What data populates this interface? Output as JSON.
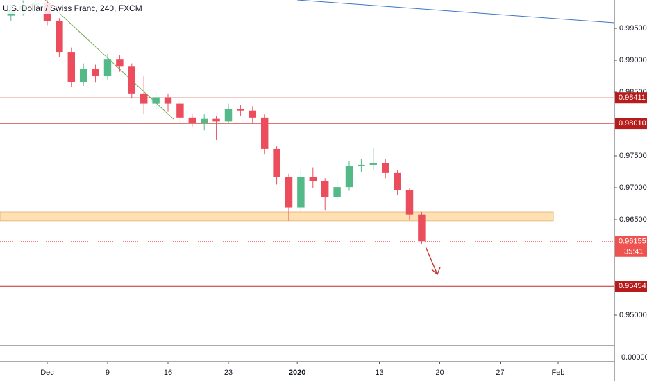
{
  "chart_data": {
    "type": "candlestick",
    "title": "U.S. Dollar / Swiss Franc, 240, FXCM",
    "x": [
      -3,
      -2,
      -1,
      0,
      1,
      2,
      3,
      4,
      5,
      6,
      7,
      8,
      9,
      10,
      11,
      12,
      13,
      14,
      15,
      16,
      17,
      18,
      19,
      20,
      21,
      22,
      23,
      24,
      25,
      26,
      27,
      28,
      29,
      30,
      31
    ],
    "open": [
      0.997,
      0.9978,
      0.9986,
      0.9989,
      0.9962,
      0.9913,
      0.9866,
      0.9886,
      0.9875,
      0.9902,
      0.9891,
      0.9848,
      0.9832,
      0.9842,
      0.9832,
      0.981,
      0.9801,
      0.9808,
      0.9804,
      0.9823,
      0.9821,
      0.981,
      0.9761,
      0.9717,
      0.9669,
      0.9717,
      0.971,
      0.9685,
      0.9701,
      0.9734,
      0.9736,
      0.9739,
      0.9723,
      0.9696,
      0.9658
    ],
    "high": [
      0.9988,
      0.9994,
      0.9996,
      0.9994,
      0.9966,
      0.992,
      0.9895,
      0.9893,
      0.991,
      0.9908,
      0.9895,
      0.9875,
      0.985,
      0.9848,
      0.9838,
      0.9815,
      0.9815,
      0.9812,
      0.9832,
      0.983,
      0.9828,
      0.9815,
      0.9765,
      0.9722,
      0.9728,
      0.9732,
      0.9715,
      0.9712,
      0.9742,
      0.9745,
      0.9762,
      0.9745,
      0.9728,
      0.97,
      0.9662
    ],
    "low": [
      0.9962,
      0.997,
      0.9978,
      0.9955,
      0.9905,
      0.9858,
      0.986,
      0.9865,
      0.987,
      0.9882,
      0.984,
      0.9815,
      0.9822,
      0.982,
      0.98,
      0.9795,
      0.979,
      0.9775,
      0.98,
      0.9812,
      0.98,
      0.9752,
      0.9705,
      0.9648,
      0.9662,
      0.97,
      0.9665,
      0.968,
      0.9695,
      0.9725,
      0.9728,
      0.9715,
      0.9688,
      0.965,
      0.9612
    ],
    "close": [
      0.9978,
      0.9986,
      0.9989,
      0.9962,
      0.9913,
      0.9866,
      0.9886,
      0.9875,
      0.9902,
      0.9891,
      0.9848,
      0.9832,
      0.9842,
      0.9832,
      0.981,
      0.9801,
      0.9808,
      0.9804,
      0.9823,
      0.9821,
      0.981,
      0.9761,
      0.9717,
      0.9669,
      0.9717,
      0.971,
      0.9685,
      0.9701,
      0.9734,
      0.9736,
      0.9739,
      0.9723,
      0.9696,
      0.9658,
      0.9616
    ],
    "up_color": "#53b987",
    "down_color": "#eb4d5c",
    "xlim": [
      -3.908,
      46.954
    ],
    "ylim": [
      0.94272,
      0.99946
    ],
    "xticks": [
      {
        "value": 0,
        "label": "Dec"
      },
      {
        "value": 5,
        "label": "9"
      },
      {
        "value": 10,
        "label": "16"
      },
      {
        "value": 15,
        "label": "23"
      },
      {
        "value": 20.7,
        "label": "2020"
      },
      {
        "value": 27.5,
        "label": "13"
      },
      {
        "value": 32.5,
        "label": "20"
      },
      {
        "value": 37.5,
        "label": "27"
      },
      {
        "value": 42.3,
        "label": "Feb"
      }
    ],
    "yticks": [
      {
        "value": 0.995,
        "label": "0.99500"
      },
      {
        "value": 0.99,
        "label": "0.99000"
      },
      {
        "value": 0.985,
        "label": "0.98500"
      },
      {
        "value": 0.975,
        "label": "0.97500"
      },
      {
        "value": 0.97,
        "label": "0.97000"
      },
      {
        "value": 0.965,
        "label": "0.96500"
      },
      {
        "value": 0.95,
        "label": "0.95000"
      }
    ],
    "axis_extra_label": "0.00000",
    "levels": [
      {
        "value": 0.98411,
        "label": "0.98411",
        "color": "#b71c1c"
      },
      {
        "value": 0.9801,
        "label": "0.98010",
        "color": "#b71c1c"
      },
      {
        "value": 0.95454,
        "label": "0.95454",
        "color": "#b71c1c"
      }
    ],
    "current_price": {
      "value": 0.96155,
      "label": "0.96155",
      "color": "#ef5350",
      "countdown": "35:41"
    },
    "zone": {
      "low": 0.9648,
      "high": 0.9662,
      "x": [
        -3.908,
        41.9
      ],
      "color": "#ffe0b2"
    },
    "trend_lines": [
      {
        "x": [
          20.7,
          46.954
        ],
        "y": [
          0.99946,
          0.99587
        ],
        "color": "#3d74c9"
      },
      {
        "x": [
          -0.17,
          10.46
        ],
        "y": [
          0.99946,
          0.98076
        ],
        "color": "#6fa84f"
      }
    ]
  }
}
